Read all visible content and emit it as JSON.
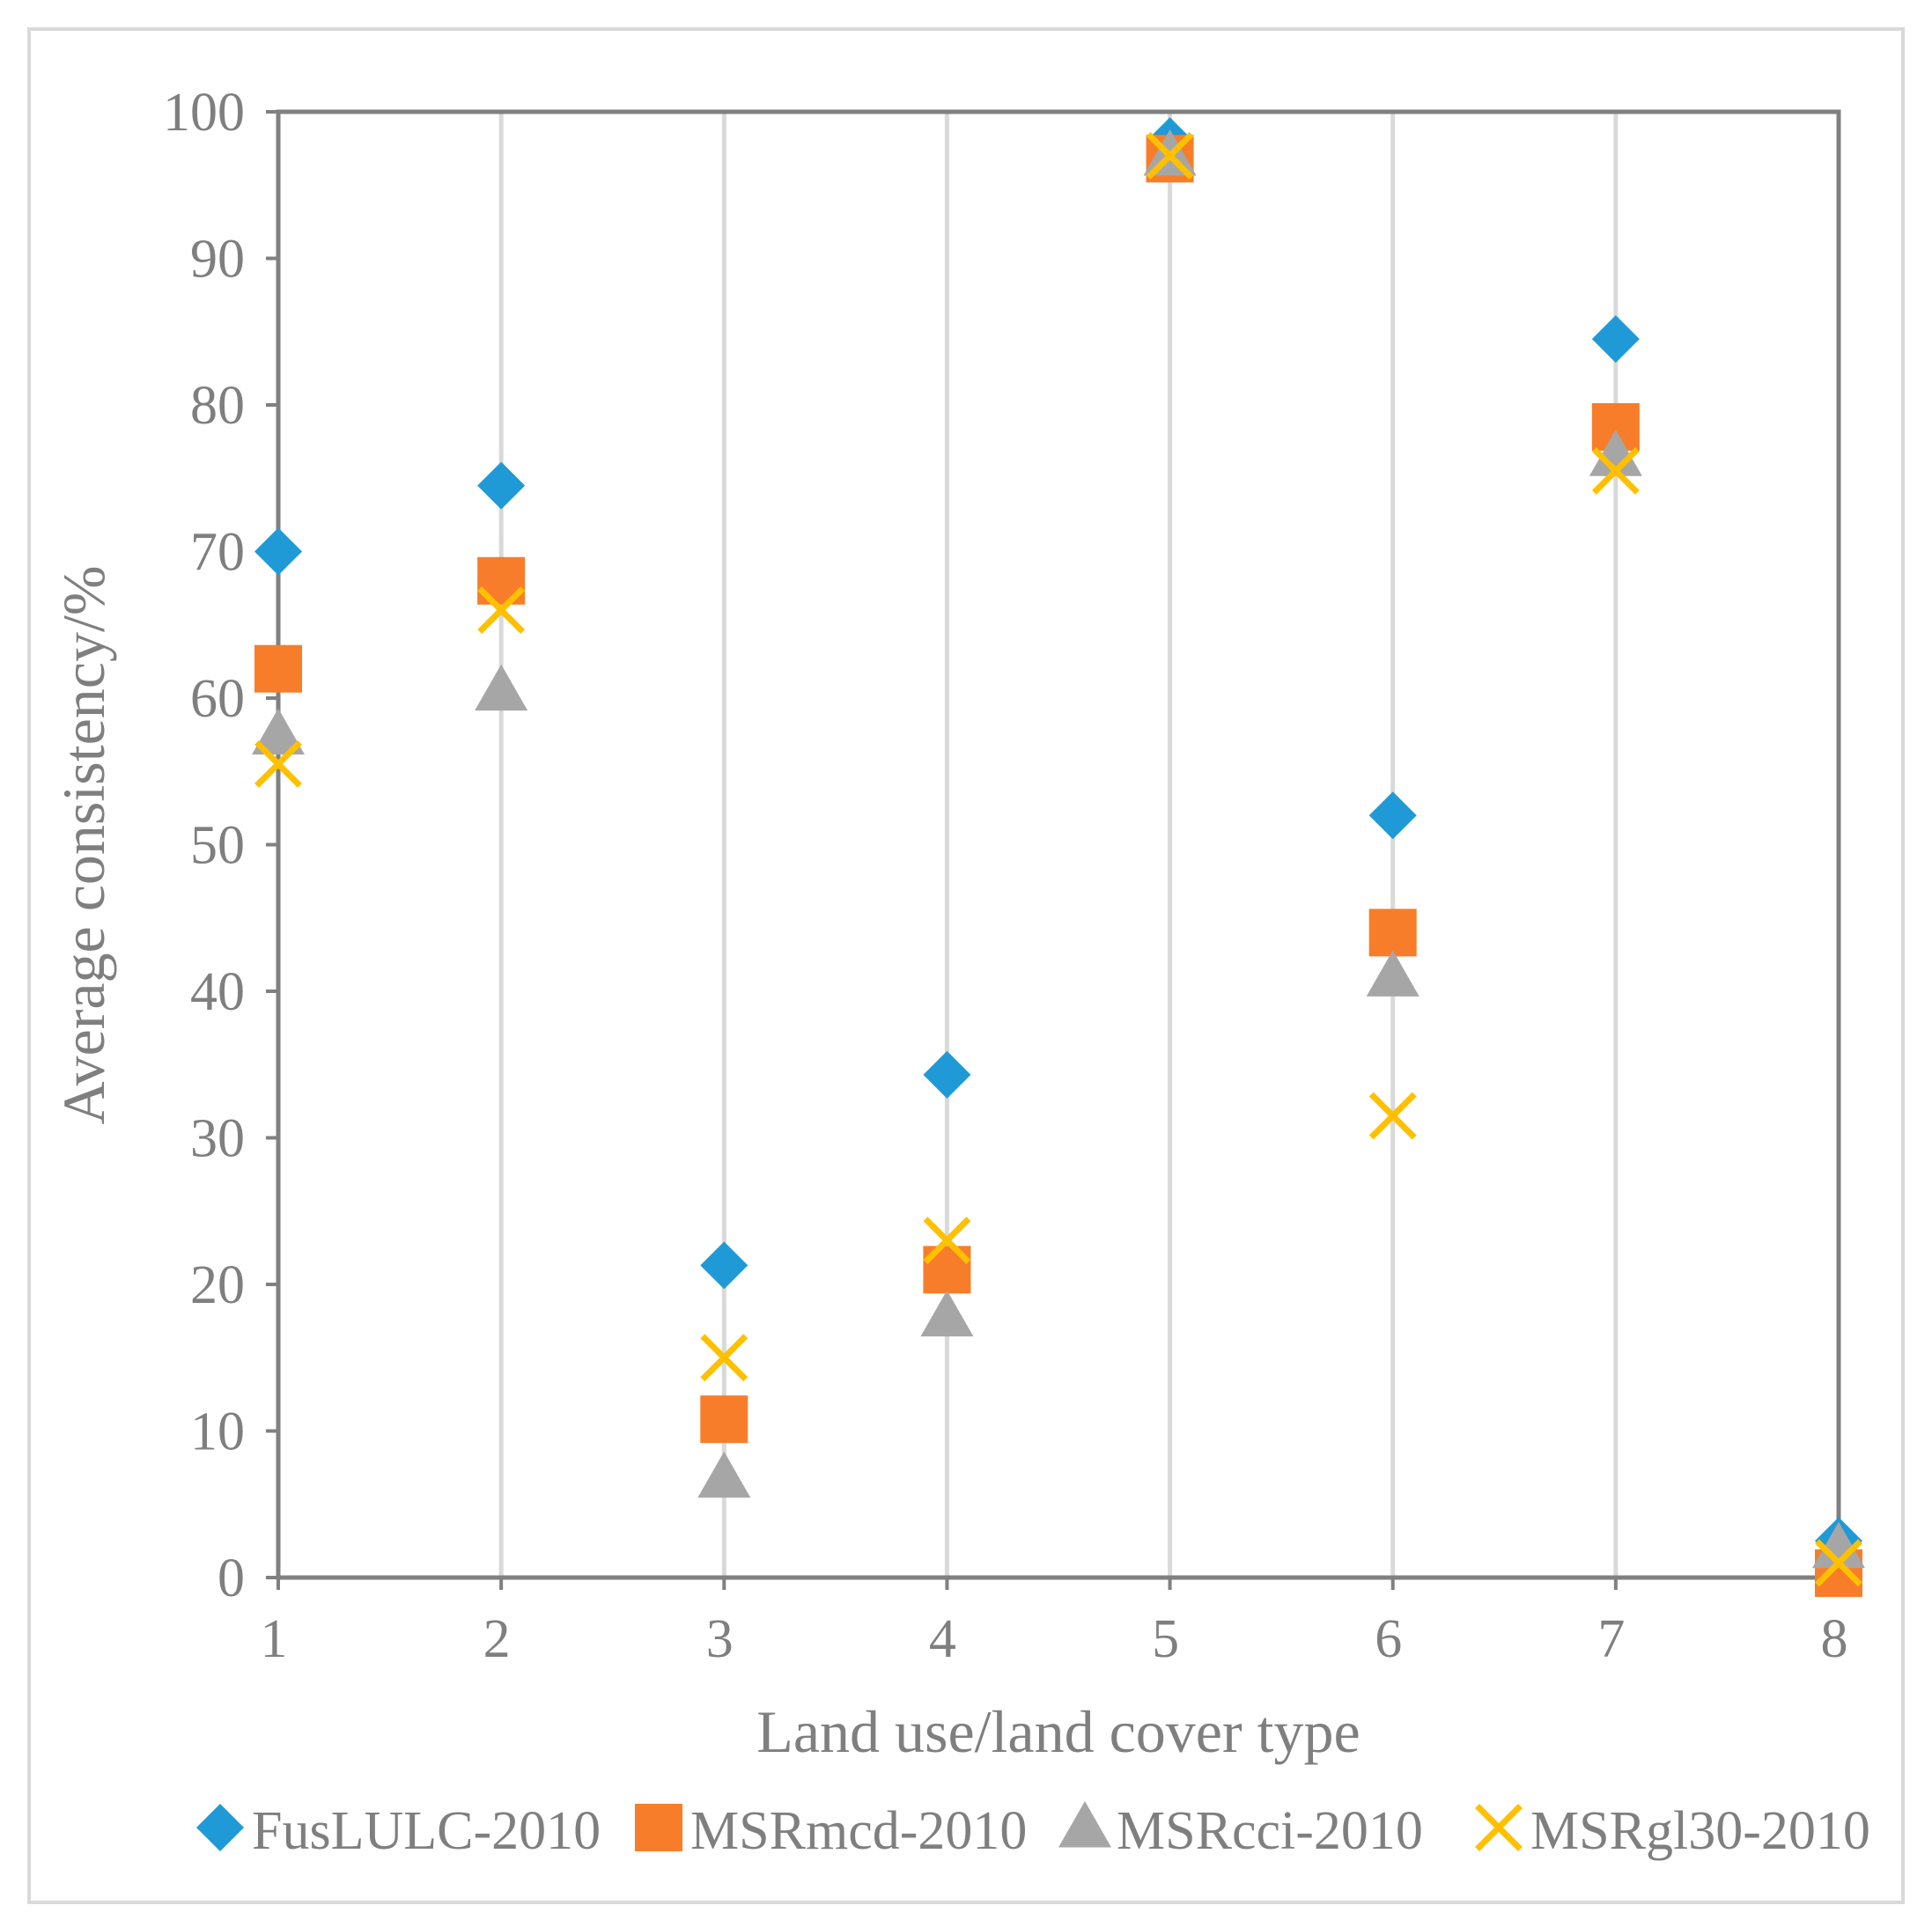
{
  "chart_data": {
    "type": "scatter",
    "title": "",
    "xlabel": "Land use/land cover type",
    "ylabel": "Average consistency/%",
    "xlim": [
      1,
      8
    ],
    "ylim": [
      0,
      100
    ],
    "x_ticks": [
      "1",
      "2",
      "3",
      "4",
      "5",
      "6",
      "7",
      "8"
    ],
    "y_ticks": [
      "0",
      "10",
      "20",
      "30",
      "40",
      "50",
      "60",
      "70",
      "80",
      "90",
      "100"
    ],
    "x": [
      1,
      2,
      3,
      4,
      5,
      6,
      7,
      8
    ],
    "grid": "vertical",
    "legend_position": "bottom",
    "series": [
      {
        "name": "FusLULC-2010",
        "marker": "diamond",
        "color": "#1f9ad6",
        "values": [
          70.0,
          74.5,
          21.3,
          34.3,
          98.0,
          52.0,
          84.5,
          2.5
        ]
      },
      {
        "name": "MSRmcd-2010",
        "marker": "square",
        "color": "#f87d2a",
        "values": [
          62.0,
          68.0,
          10.8,
          21.0,
          96.8,
          44.0,
          78.5,
          0.3
        ]
      },
      {
        "name": "MSRcci-2010",
        "marker": "triangle",
        "color": "#a6a6a6",
        "values": [
          57.5,
          60.5,
          6.8,
          17.8,
          97.0,
          41.0,
          76.5,
          2.0
        ]
      },
      {
        "name": "MSRgl30-2010",
        "marker": "x",
        "color": "#ffc000",
        "values": [
          55.5,
          66.0,
          15.0,
          23.0,
          97.0,
          31.5,
          75.5,
          1.0
        ]
      }
    ]
  }
}
